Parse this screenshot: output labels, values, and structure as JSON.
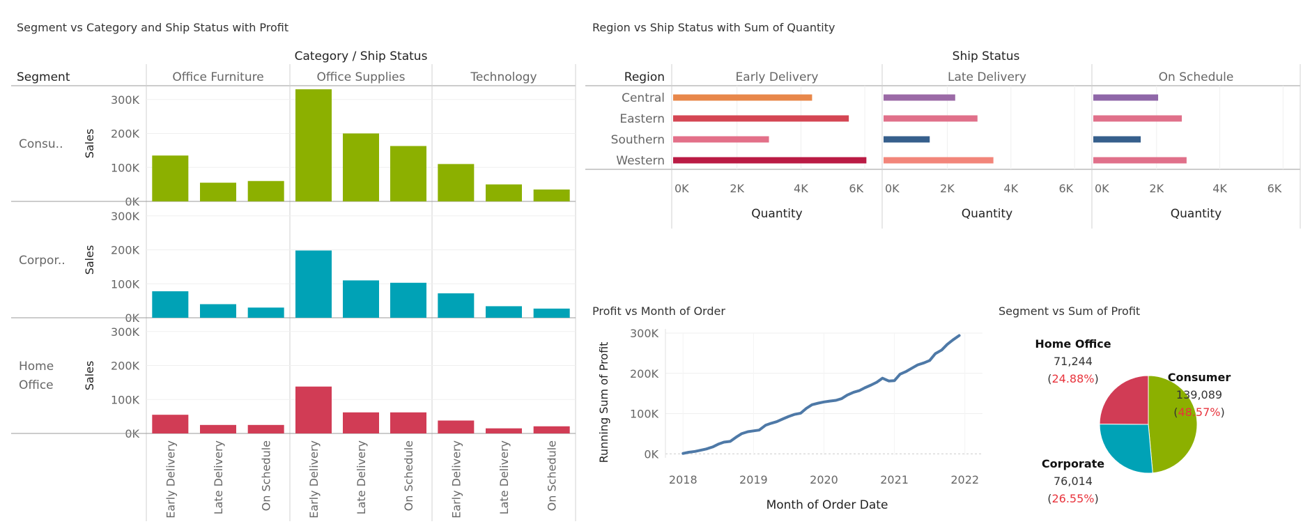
{
  "panels": {
    "segment_category": {
      "title": "Segment vs Category and Ship Status with Profit"
    },
    "region_status": {
      "title": "Region vs Ship Status with Sum of Quantity"
    },
    "profit_month": {
      "title": "Profit vs Month of Order"
    },
    "segment_profit": {
      "title": "Segment vs Sum of Profit"
    }
  },
  "chart_data": [
    {
      "id": "segment-category-bars",
      "type": "bar",
      "title": "Segment vs Category and Ship Status with Profit",
      "header": "Category  /  Ship Status",
      "row_header": "Segment",
      "ylabel": "Sales",
      "ylim": [
        0,
        320000
      ],
      "yticks": [
        "300K",
        "200K",
        "100K",
        "0K"
      ],
      "ytick_values": [
        300000,
        200000,
        100000,
        0
      ],
      "grid": true,
      "columns": [
        "Office Furniture",
        "Office Supplies",
        "Technology"
      ],
      "statuses": [
        "Early Delivery",
        "Late Delivery",
        "On Schedule"
      ],
      "rows": [
        {
          "segment": "Consu..",
          "color": "#8CB000",
          "values": [
            [
              135000,
              55000,
              60000
            ],
            [
              330000,
              200000,
              163000
            ],
            [
              110000,
              50000,
              35000
            ]
          ]
        },
        {
          "segment": "Corpor..",
          "color": "#00A2B6",
          "values": [
            [
              78000,
              40000,
              30000
            ],
            [
              198000,
              110000,
              103000
            ],
            [
              72000,
              34000,
              27000
            ]
          ]
        },
        {
          "segment": "Home Office",
          "color": "#D13C55",
          "values": [
            [
              55000,
              25000,
              25000
            ],
            [
              138000,
              62000,
              62000
            ],
            [
              38000,
              15000,
              21000
            ]
          ]
        }
      ]
    },
    {
      "id": "region-status-bars",
      "type": "bar",
      "title": "Region vs Ship Status with Sum of Quantity",
      "header": "Ship Status",
      "row_header": "Region",
      "xlabel": "Quantity",
      "xlim": [
        0,
        6500
      ],
      "xticks": [
        "0K",
        "2K",
        "4K",
        "6K"
      ],
      "xtick_values": [
        0,
        2000,
        4000,
        6000
      ],
      "grid": true,
      "columns": [
        "Early Delivery",
        "Late Delivery",
        "On Schedule"
      ],
      "regions": [
        "Central",
        "Eastern",
        "Southern",
        "Western"
      ],
      "values": [
        [
          4350,
          2250,
          2050
        ],
        [
          5500,
          2950,
          2800
        ],
        [
          3000,
          1450,
          1500
        ],
        [
          6050,
          3450,
          2950
        ]
      ],
      "colors": [
        [
          "#E8874A",
          "#9B6AA6",
          "#8F67A8"
        ],
        [
          "#D44653",
          "#E0708A",
          "#E0708A"
        ],
        [
          "#E37089",
          "#365F8C",
          "#365F8C"
        ],
        [
          "#BA1B44",
          "#F2857A",
          "#E0708A"
        ]
      ]
    },
    {
      "id": "profit-month-line",
      "type": "line",
      "title": "Profit vs Month of Order",
      "xlabel": "Month of Order Date",
      "ylabel": "Running Sum of Profit",
      "xlim": [
        2017.75,
        2022.25
      ],
      "ylim": [
        -3000,
        300000
      ],
      "xticks": [
        "2018",
        "2019",
        "2020",
        "2021",
        "2022"
      ],
      "xtick_values": [
        2018,
        2019,
        2020,
        2021,
        2022
      ],
      "yticks": [
        "300K",
        "200K",
        "100K",
        "0K"
      ],
      "ytick_values": [
        300000,
        200000,
        100000,
        0
      ],
      "grid": true,
      "color": "#4E79A7",
      "x": [
        2018.0,
        2018.08,
        2018.17,
        2018.25,
        2018.33,
        2018.42,
        2018.5,
        2018.58,
        2018.67,
        2018.75,
        2018.83,
        2018.92,
        2019.0,
        2019.08,
        2019.17,
        2019.25,
        2019.33,
        2019.42,
        2019.5,
        2019.58,
        2019.67,
        2019.75,
        2019.83,
        2019.92,
        2020.0,
        2020.08,
        2020.17,
        2020.25,
        2020.33,
        2020.42,
        2020.5,
        2020.58,
        2020.67,
        2020.75,
        2020.83,
        2020.92,
        2021.0,
        2021.08,
        2021.17,
        2021.25,
        2021.33,
        2021.42,
        2021.5,
        2021.58,
        2021.67,
        2021.75,
        2021.83,
        2021.92
      ],
      "y": [
        1000,
        4000,
        6000,
        9000,
        12000,
        17000,
        24000,
        29000,
        31000,
        41000,
        50000,
        55000,
        57000,
        59000,
        71000,
        76000,
        80000,
        87000,
        93000,
        98000,
        101000,
        113000,
        122000,
        126000,
        129000,
        131000,
        133000,
        137000,
        146000,
        153000,
        157000,
        164000,
        171000,
        178000,
        188000,
        181000,
        182000,
        198000,
        205000,
        213000,
        221000,
        226000,
        232000,
        249000,
        258000,
        272000,
        283000,
        294000
      ]
    },
    {
      "id": "segment-profit-pie",
      "type": "pie",
      "title": "Segment vs Sum of Profit",
      "slices": [
        {
          "label": "Consumer",
          "value": "139,089",
          "pct": "48.57%",
          "share": 48.57,
          "color": "#8CB000"
        },
        {
          "label": "Corporate",
          "value": "76,014",
          "pct": "26.55%",
          "share": 26.55,
          "color": "#00A2B6"
        },
        {
          "label": "Home Office",
          "value": "71,244",
          "pct": "24.88%",
          "share": 24.88,
          "color": "#D13C55"
        }
      ],
      "pct_color": "#E8333C"
    }
  ]
}
